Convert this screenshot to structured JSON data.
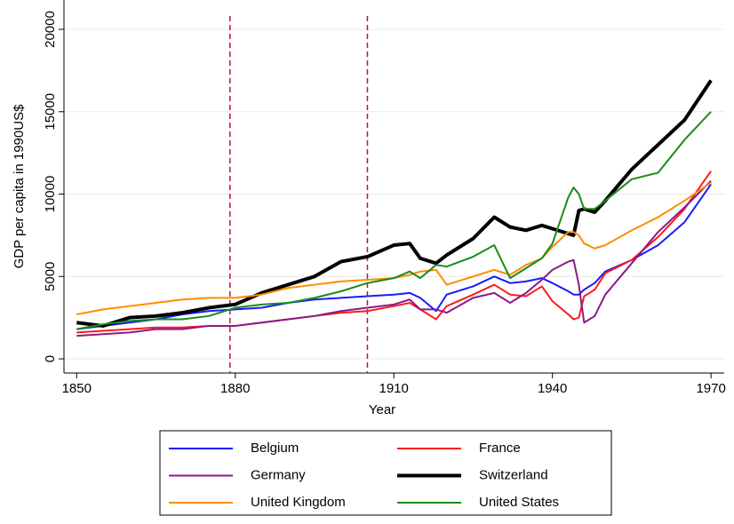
{
  "chart_data": {
    "type": "line",
    "xlabel": "Year",
    "ylabel": "GDP per capita in 1990US$",
    "x": [
      1850,
      1855,
      1860,
      1865,
      1870,
      1875,
      1880,
      1885,
      1890,
      1895,
      1900,
      1905,
      1910,
      1913,
      1915,
      1918,
      1920,
      1925,
      1929,
      1932,
      1935,
      1938,
      1940,
      1943,
      1944,
      1945,
      1946,
      1948,
      1950,
      1955,
      1960,
      1965,
      1970
    ],
    "series": [
      {
        "name": "Belgium",
        "color": "#1a1aff",
        "linewidth": 2,
        "values": [
          1800,
          2000,
          2200,
          2400,
          2700,
          2900,
          3000,
          3100,
          3400,
          3600,
          3700,
          3800,
          3900,
          4000,
          3700,
          2900,
          3900,
          4400,
          5000,
          4600,
          4700,
          4900,
          4600,
          4100,
          3900,
          3900,
          4200,
          4600,
          5300,
          6000,
          6900,
          8300,
          10600
        ]
      },
      {
        "name": "France",
        "color": "#ff1a1a",
        "linewidth": 2,
        "values": [
          1600,
          1700,
          1800,
          1900,
          1900,
          2000,
          2000,
          2200,
          2400,
          2600,
          2800,
          2900,
          3200,
          3400,
          3000,
          2400,
          3200,
          3900,
          4500,
          3900,
          3800,
          4400,
          3500,
          2700,
          2400,
          2500,
          3800,
          4200,
          5200,
          6000,
          7400,
          9100,
          11400
        ]
      },
      {
        "name": "Germany",
        "color": "#8b1a8b",
        "linewidth": 2,
        "values": [
          1400,
          1500,
          1600,
          1800,
          1800,
          2000,
          2000,
          2200,
          2400,
          2600,
          2900,
          3100,
          3300,
          3600,
          3000,
          3000,
          2800,
          3700,
          4000,
          3400,
          4000,
          4800,
          5400,
          5900,
          6000,
          4500,
          2200,
          2600,
          3900,
          5800,
          7700,
          9200,
          10800
        ]
      },
      {
        "name": "Switzerland",
        "color": "#000000",
        "linewidth": 4,
        "values": [
          2200,
          2000,
          2500,
          2600,
          2800,
          3100,
          3300,
          4000,
          4500,
          5000,
          5900,
          6200,
          6900,
          7000,
          6100,
          5800,
          6300,
          7300,
          8600,
          8000,
          7800,
          8100,
          7900,
          7600,
          7500,
          9000,
          9100,
          8900,
          9600,
          11500,
          13000,
          14500,
          16900
        ]
      },
      {
        "name": "United Kingdom",
        "color": "#ff8c00",
        "linewidth": 2,
        "values": [
          2700,
          3000,
          3200,
          3400,
          3600,
          3700,
          3700,
          3900,
          4300,
          4500,
          4700,
          4800,
          4900,
          5100,
          5300,
          5400,
          4500,
          5000,
          5400,
          5100,
          5700,
          6100,
          6800,
          7700,
          7700,
          7500,
          7000,
          6700,
          6900,
          7800,
          8600,
          9600,
          10700
        ]
      },
      {
        "name": "United States",
        "color": "#1a8c1a",
        "linewidth": 2,
        "values": [
          1800,
          2100,
          2300,
          2400,
          2400,
          2600,
          3100,
          3300,
          3400,
          3700,
          4100,
          4600,
          4900,
          5300,
          4900,
          5700,
          5600,
          6200,
          6900,
          4900,
          5500,
          6100,
          7000,
          9800,
          10400,
          10000,
          9100,
          9100,
          9600,
          10900,
          11300,
          13300,
          15000
        ]
      }
    ],
    "xlim": [
      1847.6,
      1972.5
    ],
    "ylim": [
      -860,
      21780
    ],
    "xticks": [
      1850,
      1880,
      1910,
      1940,
      1970
    ],
    "yticks": [
      0,
      5000,
      10000,
      15000,
      20000
    ],
    "vlines": [
      1879,
      1905
    ],
    "vline_color": "#c8102e",
    "grid": true
  }
}
